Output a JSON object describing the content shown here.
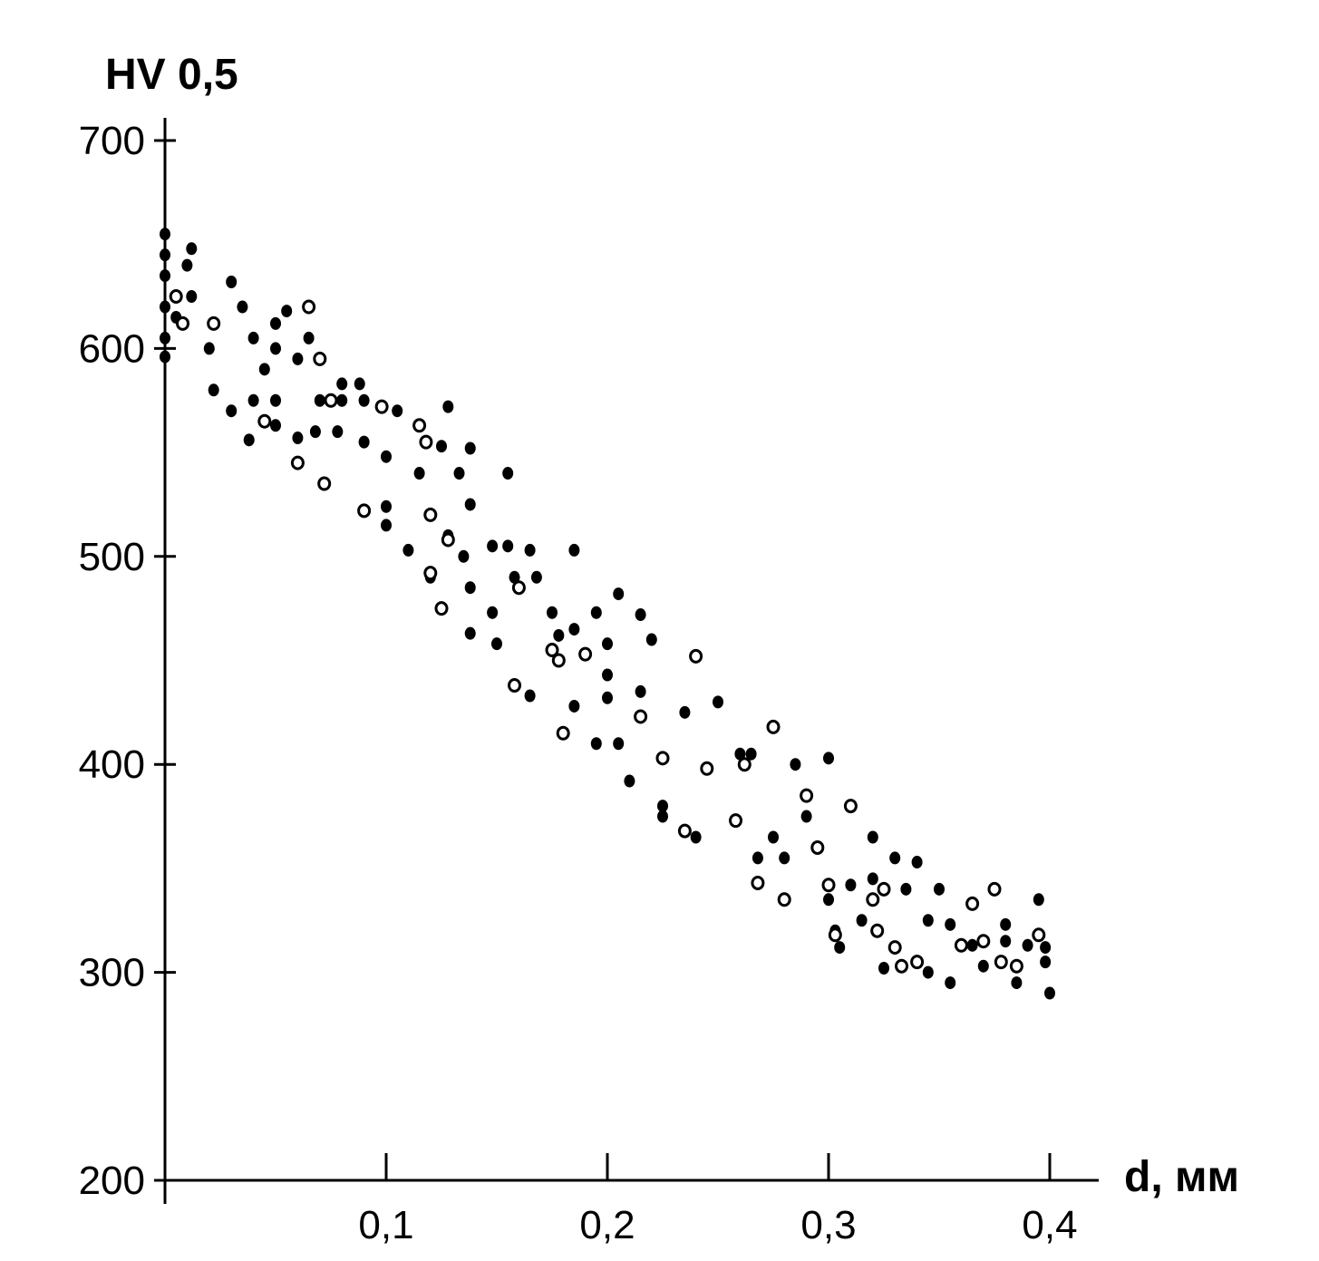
{
  "chart_data": {
    "type": "scatter",
    "title": "",
    "ylabel": "HV 0,5",
    "xlabel": "d, мм",
    "xlim": [
      0,
      0.43
    ],
    "ylim": [
      200,
      720
    ],
    "x_ticks": [
      0.1,
      0.2,
      0.3,
      0.4
    ],
    "x_tick_labels": [
      "0,1",
      "0,2",
      "0,3",
      "0,4"
    ],
    "y_ticks": [
      200,
      300,
      400,
      500,
      600,
      700
    ],
    "y_tick_labels": [
      "200",
      "300",
      "400",
      "500",
      "600",
      "700"
    ],
    "grid": false,
    "legend": "none",
    "series": [
      {
        "marker": "filled",
        "points": [
          [
            0.0,
            655
          ],
          [
            0.0,
            645
          ],
          [
            0.0,
            635
          ],
          [
            0.0,
            620
          ],
          [
            0.0,
            605
          ],
          [
            0.0,
            596
          ],
          [
            0.005,
            615
          ],
          [
            0.01,
            640
          ],
          [
            0.012,
            648
          ],
          [
            0.012,
            625
          ],
          [
            0.02,
            600
          ],
          [
            0.022,
            580
          ],
          [
            0.03,
            632
          ],
          [
            0.03,
            570
          ],
          [
            0.035,
            620
          ],
          [
            0.038,
            556
          ],
          [
            0.04,
            605
          ],
          [
            0.04,
            575
          ],
          [
            0.045,
            590
          ],
          [
            0.05,
            612
          ],
          [
            0.05,
            600
          ],
          [
            0.05,
            575
          ],
          [
            0.05,
            563
          ],
          [
            0.055,
            618
          ],
          [
            0.06,
            595
          ],
          [
            0.06,
            557
          ],
          [
            0.065,
            605
          ],
          [
            0.068,
            560
          ],
          [
            0.07,
            575
          ],
          [
            0.078,
            560
          ],
          [
            0.08,
            583
          ],
          [
            0.08,
            575
          ],
          [
            0.088,
            583
          ],
          [
            0.09,
            555
          ],
          [
            0.09,
            575
          ],
          [
            0.1,
            548
          ],
          [
            0.1,
            524
          ],
          [
            0.1,
            515
          ],
          [
            0.105,
            570
          ],
          [
            0.11,
            503
          ],
          [
            0.115,
            540
          ],
          [
            0.12,
            490
          ],
          [
            0.125,
            553
          ],
          [
            0.128,
            572
          ],
          [
            0.128,
            510
          ],
          [
            0.133,
            540
          ],
          [
            0.135,
            500
          ],
          [
            0.138,
            552
          ],
          [
            0.138,
            525
          ],
          [
            0.138,
            485
          ],
          [
            0.138,
            463
          ],
          [
            0.148,
            505
          ],
          [
            0.148,
            473
          ],
          [
            0.15,
            458
          ],
          [
            0.155,
            540
          ],
          [
            0.155,
            505
          ],
          [
            0.158,
            490
          ],
          [
            0.165,
            503
          ],
          [
            0.165,
            433
          ],
          [
            0.168,
            490
          ],
          [
            0.175,
            473
          ],
          [
            0.178,
            462
          ],
          [
            0.185,
            503
          ],
          [
            0.185,
            465
          ],
          [
            0.185,
            428
          ],
          [
            0.195,
            473
          ],
          [
            0.195,
            410
          ],
          [
            0.2,
            458
          ],
          [
            0.2,
            443
          ],
          [
            0.2,
            432
          ],
          [
            0.205,
            482
          ],
          [
            0.205,
            410
          ],
          [
            0.21,
            392
          ],
          [
            0.215,
            472
          ],
          [
            0.215,
            435
          ],
          [
            0.22,
            460
          ],
          [
            0.225,
            380
          ],
          [
            0.225,
            375
          ],
          [
            0.235,
            425
          ],
          [
            0.24,
            365
          ],
          [
            0.25,
            430
          ],
          [
            0.26,
            405
          ],
          [
            0.265,
            405
          ],
          [
            0.268,
            355
          ],
          [
            0.275,
            365
          ],
          [
            0.28,
            355
          ],
          [
            0.285,
            400
          ],
          [
            0.29,
            375
          ],
          [
            0.3,
            403
          ],
          [
            0.3,
            335
          ],
          [
            0.303,
            320
          ],
          [
            0.305,
            312
          ],
          [
            0.31,
            342
          ],
          [
            0.315,
            325
          ],
          [
            0.32,
            365
          ],
          [
            0.32,
            345
          ],
          [
            0.325,
            302
          ],
          [
            0.33,
            355
          ],
          [
            0.335,
            340
          ],
          [
            0.34,
            353
          ],
          [
            0.345,
            325
          ],
          [
            0.345,
            300
          ],
          [
            0.35,
            340
          ],
          [
            0.355,
            323
          ],
          [
            0.355,
            295
          ],
          [
            0.365,
            313
          ],
          [
            0.37,
            303
          ],
          [
            0.38,
            323
          ],
          [
            0.38,
            315
          ],
          [
            0.385,
            295
          ],
          [
            0.39,
            313
          ],
          [
            0.395,
            335
          ],
          [
            0.398,
            312
          ],
          [
            0.398,
            305
          ],
          [
            0.4,
            290
          ]
        ]
      },
      {
        "marker": "open",
        "points": [
          [
            0.005,
            625
          ],
          [
            0.008,
            612
          ],
          [
            0.022,
            612
          ],
          [
            0.045,
            565
          ],
          [
            0.06,
            545
          ],
          [
            0.065,
            620
          ],
          [
            0.07,
            595
          ],
          [
            0.072,
            535
          ],
          [
            0.075,
            575
          ],
          [
            0.09,
            522
          ],
          [
            0.098,
            572
          ],
          [
            0.115,
            563
          ],
          [
            0.118,
            555
          ],
          [
            0.12,
            520
          ],
          [
            0.12,
            492
          ],
          [
            0.125,
            475
          ],
          [
            0.128,
            508
          ],
          [
            0.158,
            438
          ],
          [
            0.16,
            485
          ],
          [
            0.175,
            455
          ],
          [
            0.178,
            450
          ],
          [
            0.18,
            415
          ],
          [
            0.19,
            453
          ],
          [
            0.215,
            423
          ],
          [
            0.225,
            403
          ],
          [
            0.235,
            368
          ],
          [
            0.24,
            452
          ],
          [
            0.245,
            398
          ],
          [
            0.258,
            373
          ],
          [
            0.262,
            400
          ],
          [
            0.268,
            343
          ],
          [
            0.275,
            418
          ],
          [
            0.28,
            335
          ],
          [
            0.29,
            385
          ],
          [
            0.295,
            360
          ],
          [
            0.3,
            342
          ],
          [
            0.303,
            318
          ],
          [
            0.31,
            380
          ],
          [
            0.32,
            335
          ],
          [
            0.322,
            320
          ],
          [
            0.325,
            340
          ],
          [
            0.33,
            312
          ],
          [
            0.333,
            303
          ],
          [
            0.34,
            305
          ],
          [
            0.36,
            313
          ],
          [
            0.365,
            333
          ],
          [
            0.37,
            315
          ],
          [
            0.375,
            340
          ],
          [
            0.378,
            305
          ],
          [
            0.385,
            303
          ],
          [
            0.395,
            318
          ]
        ]
      }
    ]
  }
}
